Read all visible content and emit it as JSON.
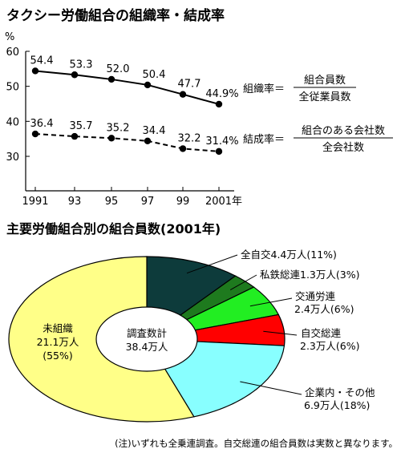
{
  "chart_data": [
    {
      "type": "line",
      "title": "タクシー労働組合の組織率・結成率",
      "yunit": "%",
      "ylim": [
        30,
        60
      ],
      "yticks": [
        "30",
        "40",
        "50",
        "60"
      ],
      "x": [
        "1991",
        "93",
        "95",
        "97",
        "99",
        "2001年"
      ],
      "series": [
        {
          "name": "組織率",
          "label": "組織率＝",
          "formula_num": "組合員数",
          "formula_den": "全従業員数",
          "values": [
            54.4,
            53.3,
            52.0,
            50.4,
            47.7,
            44.9
          ],
          "value_labels": [
            "54.4",
            "53.3",
            "52.0",
            "50.4",
            "47.7",
            "44.9%"
          ],
          "style": "solid"
        },
        {
          "name": "結成率",
          "label": "結成率＝",
          "formula_num": "組合のある会社数",
          "formula_den": "全会社数",
          "values": [
            36.4,
            35.7,
            35.2,
            34.4,
            32.2,
            31.4
          ],
          "value_labels": [
            "36.4",
            "35.7",
            "35.2",
            "34.4",
            "32.2",
            "31.4%"
          ],
          "style": "dashed"
        }
      ]
    },
    {
      "type": "pie",
      "title": "主要労働組合別の組合員数(2001年)",
      "center_line1": "調査数計",
      "center_line2": "38.4万人",
      "slices": [
        {
          "label1": "全自交4.4万人(11%)",
          "label2": "",
          "value": 11,
          "color": "#0d3b3b"
        },
        {
          "label1": "私鉄総連1.3万人(3%)",
          "label2": "",
          "value": 3,
          "color": "#1e7a1e"
        },
        {
          "label1": "交通労連",
          "label2": "2.4万人(6%)",
          "value": 6,
          "color": "#22ee22"
        },
        {
          "label1": "自交総連",
          "label2": "2.3万人(6%)",
          "value": 6,
          "color": "#ff0000"
        },
        {
          "label1": "企業内・その他",
          "label2": "6.9万人(18%)",
          "value": 18,
          "color": "#88ffff"
        },
        {
          "label1": "未組織",
          "label2": "21.1万人",
          "label3": "(55%)",
          "value": 55,
          "color": "#ffff88"
        }
      ]
    }
  ],
  "note": "(注)いずれも全乗連調査。自交総連の組合員数は実数と異なります。"
}
